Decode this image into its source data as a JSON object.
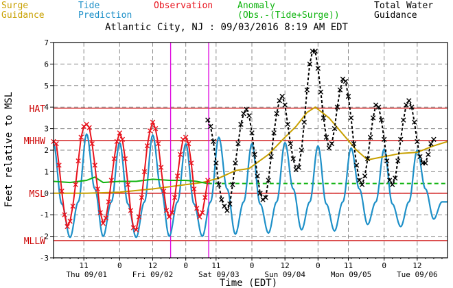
{
  "legend": {
    "surge": "Surge\nGuidance",
    "tide": "Tide\nPrediction",
    "observation": "Observation",
    "anomaly": "Anomaly\n(Obs.-(Tide+Surge))",
    "total": "Total Water\nGuidance"
  },
  "colors": {
    "surge": "#c8a000",
    "tide": "#1e90c8",
    "observation": "#e8141e",
    "anomaly": "#10b410",
    "total": "#000000",
    "datum": "#cc0000",
    "marker": "#dd00dd"
  },
  "chart_data": {
    "type": "line",
    "title": "Atlantic City, NJ : 09/03/2016 8:19 AM EDT",
    "xlabel": "Time (EDT)",
    "ylabel": "Feet relative to MSL",
    "ylim": [
      -3,
      7
    ],
    "xlim": [
      "09/01 00:00",
      "09/06 23:00"
    ],
    "yticks": [
      "-3",
      "-2",
      "-1",
      "0",
      "1",
      "2",
      "3",
      "4",
      "5",
      "6",
      "7"
    ],
    "xticks_hours": [
      {
        "label": "11",
        "t": "09/01 11:00"
      },
      {
        "label": "0",
        "t": "09/02 00:00"
      },
      {
        "label": "12",
        "t": "09/02 12:00"
      },
      {
        "label": "0",
        "t": "09/03 00:00"
      },
      {
        "label": "11",
        "t": "09/03 11:00"
      },
      {
        "label": "0",
        "t": "09/04 00:00"
      },
      {
        "label": "12",
        "t": "09/04 12:00"
      },
      {
        "label": "0",
        "t": "09/05 00:00"
      },
      {
        "label": "11",
        "t": "09/05 11:00"
      },
      {
        "label": "0",
        "t": "09/06 00:00"
      },
      {
        "label": "12",
        "t": "09/06 12:00"
      }
    ],
    "xticks_days": [
      {
        "label": "Thu 09/01",
        "t": "09/01 12:00"
      },
      {
        "label": "Fri 09/02",
        "t": "09/02 12:00"
      },
      {
        "label": "Sat 09/03",
        "t": "09/03 12:00"
      },
      {
        "label": "Sun 09/04",
        "t": "09/04 12:00"
      },
      {
        "label": "Mon 09/05",
        "t": "09/05 12:00"
      },
      {
        "label": "Tue 09/06",
        "t": "09/06 12:00"
      }
    ],
    "datums": [
      {
        "label": "HAT",
        "value": 3.95
      },
      {
        "label": "MHHW",
        "value": 2.45
      },
      {
        "label": "MSL",
        "value": 0
      },
      {
        "label": "MLLW",
        "value": -2.2
      }
    ],
    "markers": [
      "09/02 18:30",
      "09/03 08:19"
    ],
    "anomaly_forecast": 0.45,
    "series": [
      {
        "name": "Tide Prediction",
        "points": [
          [
            "09/01 00:00",
            2.3
          ],
          [
            "09/01 03:00",
            -0.5
          ],
          [
            "09/01 06:00",
            -2.05
          ],
          [
            "09/01 09:00",
            -0.4
          ],
          [
            "09/01 12:00",
            2.75
          ],
          [
            "09/01 15:00",
            0.2
          ],
          [
            "09/01 18:00",
            -2.0
          ],
          [
            "09/01 21:00",
            -0.4
          ],
          [
            "09/02 00:00",
            2.35
          ],
          [
            "09/02 03:00",
            -0.5
          ],
          [
            "09/02 06:00",
            -2.05
          ],
          [
            "09/02 09:00",
            -0.4
          ],
          [
            "09/02 12:00",
            2.7
          ],
          [
            "09/02 15:00",
            0.2
          ],
          [
            "09/02 18:00",
            -2.0
          ],
          [
            "09/02 21:00",
            -0.4
          ],
          [
            "09/03 00:00",
            2.3
          ],
          [
            "09/03 03:00",
            -0.5
          ],
          [
            "09/03 06:00",
            -2.0
          ],
          [
            "09/03 09:00",
            -0.4
          ],
          [
            "09/03 12:00",
            2.6
          ],
          [
            "09/03 15:00",
            0.2
          ],
          [
            "09/03 18:00",
            -1.9
          ],
          [
            "09/03 21:00",
            -0.4
          ],
          [
            "09/04 00:00",
            2.3
          ],
          [
            "09/04 03:00",
            -0.5
          ],
          [
            "09/04 06:00",
            -1.85
          ],
          [
            "09/04 09:00",
            -0.4
          ],
          [
            "09/04 12:00",
            2.35
          ],
          [
            "09/04 15:00",
            0.2
          ],
          [
            "09/04 18:00",
            -1.7
          ],
          [
            "09/04 21:00",
            -0.4
          ],
          [
            "09/05 00:00",
            2.2
          ],
          [
            "09/05 03:00",
            -0.5
          ],
          [
            "09/05 06:00",
            -1.75
          ],
          [
            "09/05 09:00",
            -0.4
          ],
          [
            "09/05 12:00",
            2.1
          ],
          [
            "09/05 15:00",
            0.2
          ],
          [
            "09/05 18:00",
            -1.45
          ],
          [
            "09/05 21:00",
            -0.4
          ],
          [
            "09/06 00:00",
            2.05
          ],
          [
            "09/06 03:00",
            -0.5
          ],
          [
            "09/06 06:00",
            -1.55
          ],
          [
            "09/06 09:00",
            -0.4
          ],
          [
            "09/06 12:00",
            2.0
          ],
          [
            "09/06 15:00",
            0.2
          ],
          [
            "09/06 18:00",
            -1.2
          ],
          [
            "09/06 21:00",
            -0.4
          ],
          [
            "09/06 23:00",
            -0.4
          ]
        ]
      },
      {
        "name": "Surge Guidance",
        "points": [
          [
            "09/01 00:00",
            0.0
          ],
          [
            "09/01 12:00",
            0.0
          ],
          [
            "09/02 00:00",
            0.05
          ],
          [
            "09/02 12:00",
            0.2
          ],
          [
            "09/02 18:00",
            0.3
          ],
          [
            "09/03 00:00",
            0.4
          ],
          [
            "09/03 06:00",
            0.5
          ],
          [
            "09/03 12:00",
            0.7
          ],
          [
            "09/03 18:00",
            1.05
          ],
          [
            "09/03 23:00",
            1.15
          ],
          [
            "09/04 06:00",
            1.8
          ],
          [
            "09/04 12:00",
            2.6
          ],
          [
            "09/04 16:00",
            3.1
          ],
          [
            "09/04 20:00",
            3.75
          ],
          [
            "09/04 23:00",
            4.0
          ],
          [
            "09/05 04:00",
            3.5
          ],
          [
            "09/05 10:00",
            2.6
          ],
          [
            "09/05 14:00",
            2.0
          ],
          [
            "09/05 18:00",
            1.55
          ],
          [
            "09/06 00:00",
            1.7
          ],
          [
            "09/06 06:00",
            1.85
          ],
          [
            "09/06 12:00",
            1.9
          ],
          [
            "09/06 18:00",
            2.2
          ],
          [
            "09/06 23:00",
            2.4
          ]
        ]
      },
      {
        "name": "Anomaly",
        "points": [
          [
            "09/01 00:00",
            0.55
          ],
          [
            "09/01 06:00",
            0.5
          ],
          [
            "09/01 12:00",
            0.6
          ],
          [
            "09/01 15:00",
            0.75
          ],
          [
            "09/01 18:00",
            0.5
          ],
          [
            "09/02 00:00",
            0.55
          ],
          [
            "09/02 06:00",
            0.55
          ],
          [
            "09/02 12:00",
            0.65
          ],
          [
            "09/02 18:00",
            0.6
          ],
          [
            "09/03 00:00",
            0.6
          ],
          [
            "09/03 04:00",
            0.55
          ],
          [
            "09/03 08:00",
            0.45
          ]
        ]
      },
      {
        "name": "Observation",
        "points": [
          [
            "09/01 00:00",
            2.4
          ],
          [
            "09/01 01:00",
            2.3
          ],
          [
            "09/01 02:00",
            1.3
          ],
          [
            "09/01 03:00",
            0.1
          ],
          [
            "09/01 04:00",
            -1.0
          ],
          [
            "09/01 05:00",
            -1.55
          ],
          [
            "09/01 06:00",
            -1.3
          ],
          [
            "09/01 07:00",
            -0.6
          ],
          [
            "09/01 08:00",
            0.4
          ],
          [
            "09/01 09:00",
            1.5
          ],
          [
            "09/01 10:00",
            2.6
          ],
          [
            "09/01 11:00",
            3.1
          ],
          [
            "09/01 12:00",
            3.2
          ],
          [
            "09/01 13:00",
            3.05
          ],
          [
            "09/01 14:00",
            2.3
          ],
          [
            "09/01 15:00",
            1.3
          ],
          [
            "09/01 16:00",
            0.2
          ],
          [
            "09/01 17:00",
            -0.9
          ],
          [
            "09/01 18:00",
            -1.4
          ],
          [
            "09/01 19:00",
            -1.15
          ],
          [
            "09/01 20:00",
            -0.4
          ],
          [
            "09/01 21:00",
            0.6
          ],
          [
            "09/01 22:00",
            1.6
          ],
          [
            "09/01 23:00",
            2.4
          ],
          [
            "09/02 00:00",
            2.8
          ],
          [
            "09/02 01:00",
            2.5
          ],
          [
            "09/02 02:00",
            1.6
          ],
          [
            "09/02 03:00",
            0.4
          ],
          [
            "09/02 04:00",
            -0.8
          ],
          [
            "09/02 05:00",
            -1.6
          ],
          [
            "09/02 06:00",
            -1.7
          ],
          [
            "09/02 07:00",
            -1.1
          ],
          [
            "09/02 08:00",
            -0.2
          ],
          [
            "09/02 09:00",
            1.0
          ],
          [
            "09/02 10:00",
            2.2
          ],
          [
            "09/02 11:00",
            2.9
          ],
          [
            "09/02 12:00",
            3.3
          ],
          [
            "09/02 13:00",
            3.0
          ],
          [
            "09/02 14:00",
            2.3
          ],
          [
            "09/02 15:00",
            1.2
          ],
          [
            "09/02 16:00",
            0.1
          ],
          [
            "09/02 17:00",
            -0.8
          ],
          [
            "09/02 18:00",
            -1.1
          ],
          [
            "09/02 19:00",
            -0.9
          ],
          [
            "09/02 20:00",
            -0.2
          ],
          [
            "09/02 21:00",
            0.8
          ],
          [
            "09/02 22:00",
            1.8
          ],
          [
            "09/02 23:00",
            2.5
          ],
          [
            "09/03 00:00",
            2.6
          ],
          [
            "09/03 01:00",
            2.3
          ],
          [
            "09/03 02:00",
            1.4
          ],
          [
            "09/03 03:00",
            0.2
          ],
          [
            "09/03 04:00",
            -0.7
          ],
          [
            "09/03 05:00",
            -1.1
          ],
          [
            "09/03 06:00",
            -0.9
          ],
          [
            "09/03 07:00",
            -0.2
          ],
          [
            "09/03 08:00",
            0.6
          ]
        ]
      },
      {
        "name": "Total Water Guidance",
        "points": [
          [
            "09/03 08:00",
            3.4
          ],
          [
            "09/03 09:00",
            3.1
          ],
          [
            "09/03 10:00",
            2.4
          ],
          [
            "09/03 11:00",
            1.4
          ],
          [
            "09/03 12:00",
            0.4
          ],
          [
            "09/03 13:00",
            -0.3
          ],
          [
            "09/03 14:00",
            -0.6
          ],
          [
            "09/03 15:00",
            -0.8
          ],
          [
            "09/03 16:00",
            -0.5
          ],
          [
            "09/03 17:00",
            0.4
          ],
          [
            "09/03 18:00",
            1.4
          ],
          [
            "09/03 19:00",
            2.3
          ],
          [
            "09/03 20:00",
            3.2
          ],
          [
            "09/03 21:00",
            3.7
          ],
          [
            "09/03 22:00",
            3.9
          ],
          [
            "09/03 23:00",
            3.6
          ],
          [
            "09/04 00:00",
            2.8
          ],
          [
            "09/04 01:00",
            1.8
          ],
          [
            "09/04 02:00",
            0.8
          ],
          [
            "09/04 03:00",
            0.0
          ],
          [
            "09/04 04:00",
            -0.3
          ],
          [
            "09/04 05:00",
            -0.2
          ],
          [
            "09/04 06:00",
            0.6
          ],
          [
            "09/04 07:00",
            1.7
          ],
          [
            "09/04 08:00",
            2.8
          ],
          [
            "09/04 09:00",
            3.7
          ],
          [
            "09/04 10:00",
            4.3
          ],
          [
            "09/04 11:00",
            4.5
          ],
          [
            "09/04 12:00",
            4.1
          ],
          [
            "09/04 13:00",
            3.2
          ],
          [
            "09/04 14:00",
            2.3
          ],
          [
            "09/04 15:00",
            1.6
          ],
          [
            "09/04 16:00",
            1.1
          ],
          [
            "09/04 17:00",
            1.2
          ],
          [
            "09/04 18:00",
            2.0
          ],
          [
            "09/04 19:00",
            3.3
          ],
          [
            "09/04 20:00",
            4.8
          ],
          [
            "09/04 21:00",
            6.0
          ],
          [
            "09/04 22:00",
            6.6
          ],
          [
            "09/04 23:00",
            6.6
          ],
          [
            "09/05 00:00",
            5.8
          ],
          [
            "09/05 01:00",
            4.7
          ],
          [
            "09/05 02:00",
            3.5
          ],
          [
            "09/05 03:00",
            2.6
          ],
          [
            "09/05 04:00",
            2.1
          ],
          [
            "09/05 05:00",
            2.3
          ],
          [
            "09/05 06:00",
            3.0
          ],
          [
            "09/05 07:00",
            4.0
          ],
          [
            "09/05 08:00",
            4.8
          ],
          [
            "09/05 09:00",
            5.3
          ],
          [
            "09/05 10:00",
            5.2
          ],
          [
            "09/05 11:00",
            4.5
          ],
          [
            "09/05 12:00",
            3.5
          ],
          [
            "09/05 13:00",
            2.3
          ],
          [
            "09/05 14:00",
            1.3
          ],
          [
            "09/05 15:00",
            0.6
          ],
          [
            "09/05 16:00",
            0.4
          ],
          [
            "09/05 17:00",
            0.8
          ],
          [
            "09/05 18:00",
            1.6
          ],
          [
            "09/05 19:00",
            2.6
          ],
          [
            "09/05 20:00",
            3.5
          ],
          [
            "09/05 21:00",
            4.1
          ],
          [
            "09/05 22:00",
            4.0
          ],
          [
            "09/05 23:00",
            3.4
          ],
          [
            "09/06 00:00",
            2.5
          ],
          [
            "09/06 01:00",
            1.5
          ],
          [
            "09/06 02:00",
            0.6
          ],
          [
            "09/06 03:00",
            0.4
          ],
          [
            "09/06 04:00",
            0.7
          ],
          [
            "09/06 05:00",
            1.5
          ],
          [
            "09/06 06:00",
            2.5
          ],
          [
            "09/06 07:00",
            3.4
          ],
          [
            "09/06 08:00",
            4.1
          ],
          [
            "09/06 09:00",
            4.3
          ],
          [
            "09/06 10:00",
            4.0
          ],
          [
            "09/06 11:00",
            3.3
          ],
          [
            "09/06 12:00",
            2.4
          ],
          [
            "09/06 13:00",
            1.7
          ],
          [
            "09/06 14:00",
            1.4
          ],
          [
            "09/06 15:00",
            1.4
          ],
          [
            "09/06 16:00",
            1.8
          ],
          [
            "09/06 17:00",
            2.3
          ],
          [
            "09/06 18:00",
            2.5
          ]
        ]
      }
    ]
  }
}
